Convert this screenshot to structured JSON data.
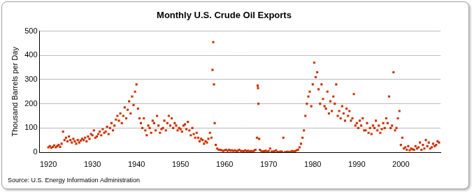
{
  "chart_data": {
    "type": "scatter",
    "title": "Monthly U.S. Crude Oil Exports",
    "y_label": "Thousand Barrels per Day",
    "source": "Source: U.S. Energy Information Administration",
    "color": "#cc3300",
    "marker": "square",
    "grid": true,
    "xlim": [
      1918,
      2009
    ],
    "xticks": [
      1920,
      1930,
      1940,
      1950,
      1960,
      1970,
      1980,
      1990,
      2000
    ],
    "ylim": [
      0,
      500
    ],
    "yticks": [
      0,
      100,
      200,
      300,
      400,
      500
    ],
    "x": [
      1920,
      1920.33,
      1920.67,
      1921,
      1921.33,
      1921.67,
      1922,
      1922.33,
      1922.67,
      1923,
      1923.33,
      1923.67,
      1924,
      1924.33,
      1924.67,
      1925,
      1925.33,
      1925.67,
      1926,
      1926.33,
      1926.67,
      1927,
      1927.33,
      1927.67,
      1928,
      1928.33,
      1928.67,
      1929,
      1929.33,
      1929.67,
      1930,
      1930.33,
      1930.67,
      1931,
      1931.33,
      1931.67,
      1932,
      1932.33,
      1932.67,
      1933,
      1933.33,
      1933.67,
      1934,
      1934.33,
      1934.67,
      1935,
      1935.33,
      1935.67,
      1936,
      1936.33,
      1936.67,
      1937,
      1937.33,
      1937.67,
      1938,
      1938.33,
      1938.67,
      1939,
      1939.33,
      1939.67,
      1940,
      1940.33,
      1940.67,
      1941,
      1941.33,
      1941.67,
      1942,
      1942.33,
      1942.67,
      1943,
      1943.33,
      1943.67,
      1944,
      1944.33,
      1944.67,
      1945,
      1945.33,
      1945.67,
      1946,
      1946.33,
      1946.67,
      1947,
      1947.33,
      1947.67,
      1948,
      1948.33,
      1948.67,
      1949,
      1949.33,
      1949.67,
      1950,
      1950.33,
      1950.67,
      1951,
      1951.33,
      1951.67,
      1952,
      1952.33,
      1952.67,
      1953,
      1953.33,
      1953.67,
      1954,
      1954.33,
      1954.67,
      1955,
      1955.33,
      1955.67,
      1956,
      1956.33,
      1956.67,
      1957,
      1957.25,
      1957.42,
      1957.58,
      1957.75,
      1958,
      1958.33,
      1958.67,
      1959,
      1959.33,
      1959.67,
      1960,
      1960.33,
      1960.67,
      1961,
      1961.33,
      1961.67,
      1962,
      1962.33,
      1962.67,
      1963,
      1963.33,
      1963.67,
      1964,
      1964.33,
      1964.67,
      1965,
      1965.33,
      1965.67,
      1966,
      1966.33,
      1966.67,
      1967,
      1967.33,
      1967.5,
      1967.58,
      1967.67,
      1967.83,
      1968,
      1968.33,
      1968.67,
      1969,
      1969.33,
      1969.67,
      1970,
      1970.33,
      1970.67,
      1971,
      1971.33,
      1971.67,
      1972,
      1972.33,
      1972.67,
      1973,
      1973.33,
      1973.67,
      1974,
      1974.33,
      1974.67,
      1975,
      1975.33,
      1975.67,
      1976,
      1976.33,
      1976.67,
      1977,
      1977.33,
      1977.67,
      1978,
      1978.33,
      1978.67,
      1979,
      1979.33,
      1979.67,
      1980,
      1980.33,
      1980.67,
      1981,
      1981.33,
      1981.67,
      1982,
      1982.33,
      1982.67,
      1983,
      1983.33,
      1983.67,
      1984,
      1984.33,
      1984.67,
      1985,
      1985.33,
      1985.67,
      1986,
      1986.33,
      1986.67,
      1987,
      1987.33,
      1987.67,
      1988,
      1988.33,
      1988.67,
      1989,
      1989.33,
      1989.67,
      1990,
      1990.33,
      1990.67,
      1991,
      1991.33,
      1991.67,
      1992,
      1992.33,
      1992.67,
      1993,
      1993.33,
      1993.67,
      1994,
      1994.33,
      1994.67,
      1995,
      1995.33,
      1995.67,
      1996,
      1996.33,
      1996.67,
      1997,
      1997.33,
      1997.67,
      1998,
      1998.33,
      1998.67,
      1999,
      1999.33,
      1999.67,
      2000,
      2000.33,
      2000.67,
      2001,
      2001.33,
      2001.67,
      2002,
      2002.33,
      2002.67,
      2003,
      2003.33,
      2003.67,
      2004,
      2004.33,
      2004.67,
      2005,
      2005.33,
      2005.67,
      2006,
      2006.33,
      2006.67,
      2007,
      2007.33,
      2007.67,
      2008,
      2008.33,
      2008.67
    ],
    "values": [
      20,
      25,
      18,
      22,
      28,
      20,
      25,
      30,
      22,
      35,
      85,
      50,
      60,
      45,
      65,
      50,
      40,
      55,
      45,
      35,
      50,
      40,
      48,
      55,
      50,
      60,
      45,
      65,
      55,
      75,
      70,
      90,
      60,
      65,
      75,
      85,
      70,
      95,
      80,
      85,
      105,
      75,
      100,
      120,
      90,
      110,
      135,
      150,
      130,
      160,
      120,
      150,
      185,
      140,
      175,
      210,
      160,
      230,
      195,
      250,
      280,
      180,
      140,
      120,
      100,
      140,
      90,
      70,
      110,
      100,
      80,
      130,
      120,
      90,
      150,
      110,
      80,
      95,
      100,
      130,
      90,
      120,
      150,
      110,
      140,
      100,
      120,
      110,
      90,
      100,
      95,
      85,
      110,
      115,
      95,
      125,
      90,
      70,
      100,
      75,
      60,
      80,
      60,
      45,
      55,
      50,
      35,
      45,
      40,
      55,
      80,
      60,
      340,
      455,
      280,
      120,
      30,
      15,
      10,
      10,
      8,
      5,
      8,
      10,
      5,
      10,
      6,
      8,
      5,
      8,
      4,
      6,
      10,
      5,
      5,
      4,
      8,
      4,
      6,
      3,
      5,
      3,
      6,
      10,
      60,
      275,
      265,
      200,
      55,
      10,
      5,
      3,
      4,
      6,
      2,
      5,
      15,
      3,
      2,
      4,
      8,
      1,
      0,
      3,
      2,
      60,
      0,
      1,
      2,
      0,
      2,
      5,
      3,
      4,
      8,
      10,
      20,
      35,
      60,
      90,
      150,
      200,
      230,
      250,
      190,
      280,
      370,
      310,
      330,
      260,
      200,
      280,
      220,
      190,
      180,
      250,
      160,
      210,
      170,
      230,
      200,
      280,
      150,
      170,
      140,
      190,
      160,
      130,
      180,
      150,
      170,
      130,
      140,
      240,
      110,
      120,
      100,
      130,
      110,
      140,
      90,
      90,
      120,
      80,
      100,
      75,
      110,
      100,
      130,
      90,
      110,
      80,
      95,
      120,
      100,
      140,
      120,
      230,
      100,
      110,
      330,
      90,
      100,
      140,
      170,
      30,
      60,
      15,
      20,
      10,
      25,
      8,
      15,
      12,
      10,
      25,
      15,
      20,
      40,
      10,
      30,
      15,
      50,
      25,
      40,
      15,
      20,
      35,
      25,
      30,
      45,
      40
    ]
  }
}
